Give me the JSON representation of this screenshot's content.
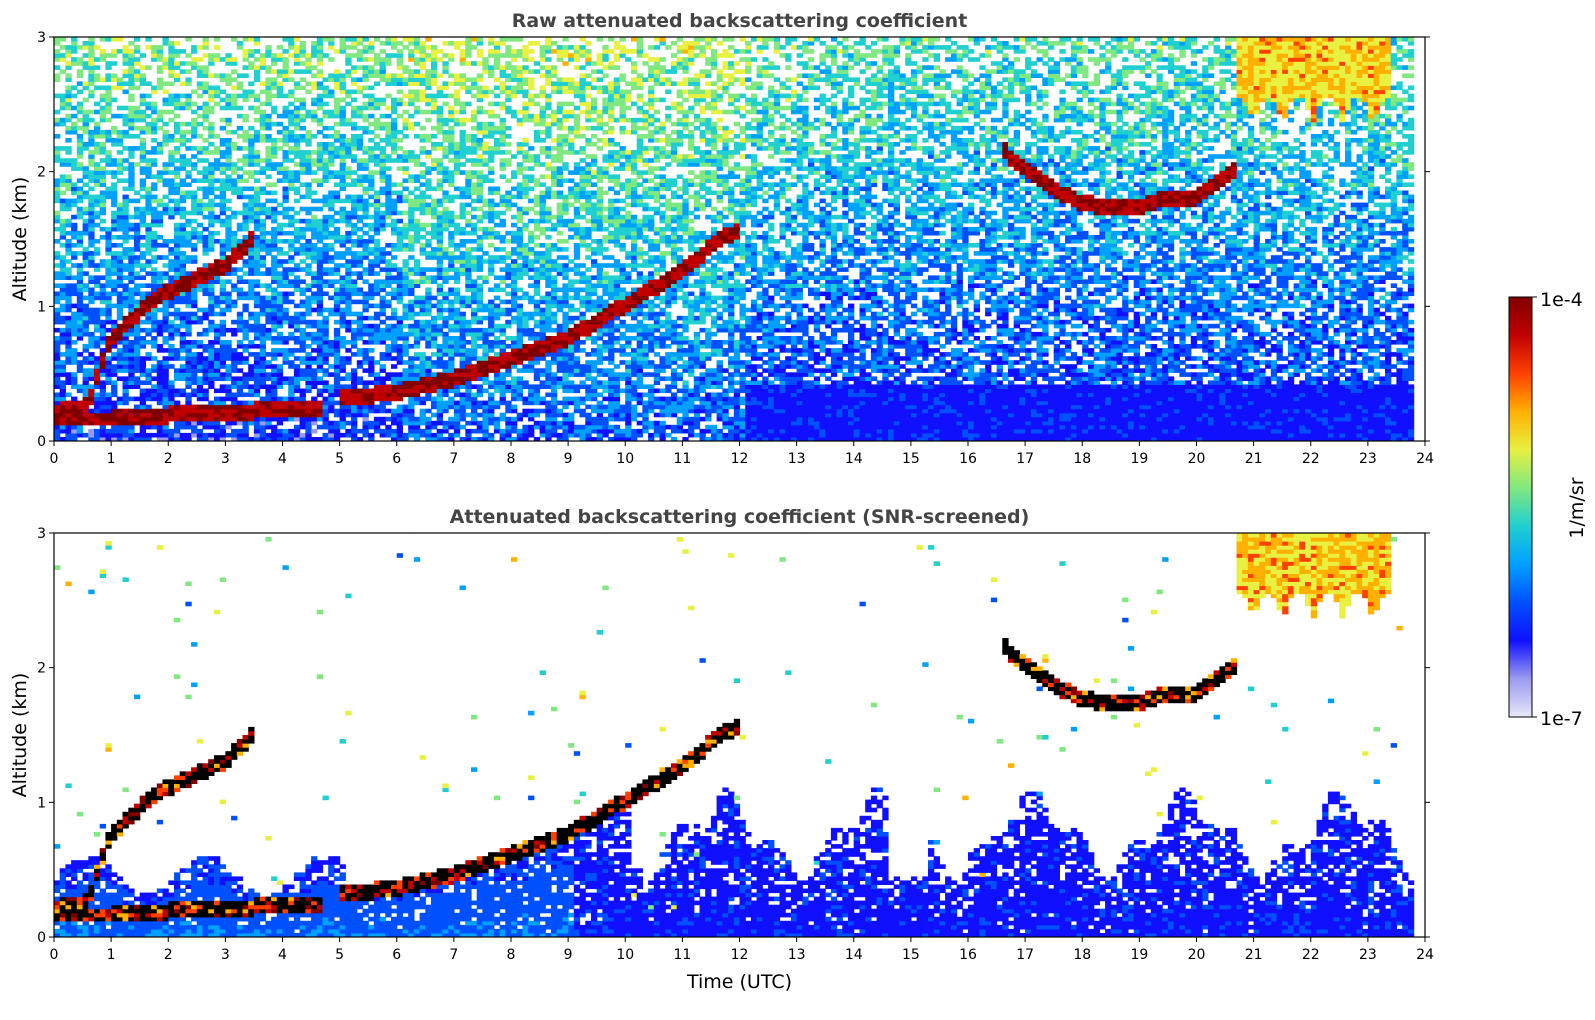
{
  "chart_data": [
    {
      "type": "heatmap",
      "title": "Raw attenuated backscattering coefficient",
      "xlabel": "",
      "ylabel": "Altitude (km)",
      "xlim": [
        0,
        24
      ],
      "ylim": [
        0,
        3
      ],
      "x_ticks": [
        "0",
        "1",
        "2",
        "3",
        "4",
        "5",
        "6",
        "7",
        "8",
        "9",
        "10",
        "11",
        "12",
        "13",
        "14",
        "15",
        "16",
        "17",
        "18",
        "19",
        "20",
        "21",
        "22",
        "23",
        "24"
      ],
      "y_ticks": [
        "0",
        "1",
        "2",
        "3"
      ],
      "data_end_time": 23.8,
      "noise_level": "high",
      "layers": [
        {
          "name": "early layer",
          "points": [
            [
              0.0,
              0.2
            ],
            [
              0.6,
              0.25
            ],
            [
              0.8,
              0.55
            ],
            [
              1.0,
              0.75
            ],
            [
              1.5,
              0.95
            ],
            [
              2.0,
              1.1
            ],
            [
              2.5,
              1.2
            ],
            [
              3.0,
              1.3
            ],
            [
              3.5,
              1.5
            ]
          ]
        },
        {
          "name": "surface layer",
          "points": [
            [
              0.0,
              0.15
            ],
            [
              1.0,
              0.15
            ],
            [
              2.0,
              0.18
            ],
            [
              3.0,
              0.2
            ],
            [
              4.0,
              0.22
            ],
            [
              4.7,
              0.22
            ]
          ]
        },
        {
          "name": "boundary layer top",
          "points": [
            [
              5.0,
              0.3
            ],
            [
              6.0,
              0.35
            ],
            [
              7.0,
              0.45
            ],
            [
              8.0,
              0.6
            ],
            [
              9.0,
              0.75
            ],
            [
              10.0,
              1.0
            ],
            [
              11.0,
              1.25
            ],
            [
              11.7,
              1.5
            ],
            [
              12.0,
              1.55
            ]
          ]
        },
        {
          "name": "cloud layer",
          "points": [
            [
              16.6,
              2.15
            ],
            [
              17.0,
              2.0
            ],
            [
              17.5,
              1.85
            ],
            [
              18.0,
              1.75
            ],
            [
              18.5,
              1.72
            ],
            [
              19.0,
              1.72
            ],
            [
              19.5,
              1.8
            ],
            [
              20.0,
              1.8
            ],
            [
              20.5,
              1.95
            ],
            [
              20.7,
              2.0
            ]
          ]
        }
      ],
      "high_cloud": {
        "start": 20.7,
        "end": 23.4,
        "bottom": 2.35,
        "top": 3.0
      }
    },
    {
      "type": "heatmap",
      "title": "Attenuated backscattering coefficient (SNR-screened)",
      "xlabel": "Time (UTC)",
      "ylabel": "Altitude (km)",
      "xlim": [
        0,
        24
      ],
      "ylim": [
        0,
        3
      ],
      "x_ticks": [
        "0",
        "1",
        "2",
        "3",
        "4",
        "5",
        "6",
        "7",
        "8",
        "9",
        "10",
        "11",
        "12",
        "13",
        "14",
        "15",
        "16",
        "17",
        "18",
        "19",
        "20",
        "21",
        "22",
        "23",
        "24"
      ],
      "y_ticks": [
        "0",
        "1",
        "2",
        "3"
      ],
      "data_end_time": 23.8,
      "noise_level": "screened",
      "layers": [
        {
          "name": "early layer",
          "points": [
            [
              0.0,
              0.2
            ],
            [
              0.6,
              0.25
            ],
            [
              0.8,
              0.55
            ],
            [
              1.0,
              0.75
            ],
            [
              1.5,
              0.95
            ],
            [
              2.0,
              1.1
            ],
            [
              2.5,
              1.2
            ],
            [
              3.0,
              1.3
            ],
            [
              3.5,
              1.5
            ]
          ]
        },
        {
          "name": "surface layer",
          "points": [
            [
              0.0,
              0.15
            ],
            [
              1.0,
              0.15
            ],
            [
              2.0,
              0.18
            ],
            [
              3.0,
              0.2
            ],
            [
              4.0,
              0.22
            ],
            [
              4.7,
              0.22
            ]
          ]
        },
        {
          "name": "boundary layer top",
          "points": [
            [
              5.0,
              0.3
            ],
            [
              6.0,
              0.35
            ],
            [
              7.0,
              0.45
            ],
            [
              8.0,
              0.6
            ],
            [
              9.0,
              0.75
            ],
            [
              10.0,
              1.0
            ],
            [
              11.0,
              1.25
            ],
            [
              11.7,
              1.5
            ],
            [
              12.0,
              1.55
            ]
          ]
        },
        {
          "name": "cloud layer",
          "points": [
            [
              16.6,
              2.15
            ],
            [
              17.0,
              2.0
            ],
            [
              17.5,
              1.85
            ],
            [
              18.0,
              1.75
            ],
            [
              18.5,
              1.72
            ],
            [
              19.0,
              1.72
            ],
            [
              19.5,
              1.8
            ],
            [
              20.0,
              1.8
            ],
            [
              20.5,
              1.95
            ],
            [
              20.7,
              2.0
            ]
          ]
        }
      ],
      "high_cloud": {
        "start": 20.7,
        "end": 23.4,
        "bottom": 2.35,
        "top": 3.0
      }
    }
  ],
  "colorbar": {
    "label": "1/m/sr",
    "max_label": "1e-4",
    "min_label": "1e-7",
    "colormap": "jet",
    "colors": [
      "#e8e8f8",
      "#9a9af0",
      "#1010ff",
      "#0050ff",
      "#00a0ff",
      "#20d0d0",
      "#80e880",
      "#e8f040",
      "#ffb000",
      "#ff4000",
      "#c00000",
      "#800000"
    ]
  }
}
